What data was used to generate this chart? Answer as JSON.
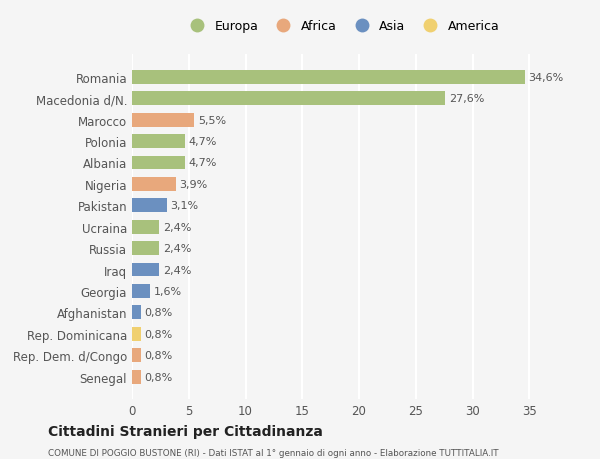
{
  "countries": [
    "Romania",
    "Macedonia d/N.",
    "Marocco",
    "Polonia",
    "Albania",
    "Nigeria",
    "Pakistan",
    "Ucraina",
    "Russia",
    "Iraq",
    "Georgia",
    "Afghanistan",
    "Rep. Dominicana",
    "Rep. Dem. d/Congo",
    "Senegal"
  ],
  "values": [
    34.6,
    27.6,
    5.5,
    4.7,
    4.7,
    3.9,
    3.1,
    2.4,
    2.4,
    2.4,
    1.6,
    0.8,
    0.8,
    0.8,
    0.8
  ],
  "labels": [
    "34,6%",
    "27,6%",
    "5,5%",
    "4,7%",
    "4,7%",
    "3,9%",
    "3,1%",
    "2,4%",
    "2,4%",
    "2,4%",
    "1,6%",
    "0,8%",
    "0,8%",
    "0,8%",
    "0,8%"
  ],
  "continents": [
    "Europa",
    "Europa",
    "Africa",
    "Europa",
    "Europa",
    "Africa",
    "Asia",
    "Europa",
    "Europa",
    "Asia",
    "Asia",
    "Asia",
    "America",
    "Africa",
    "Africa"
  ],
  "continent_colors": {
    "Europa": "#a8c17c",
    "Africa": "#e8a87c",
    "Asia": "#6b90c0",
    "America": "#f0d070"
  },
  "legend_order": [
    "Europa",
    "Africa",
    "Asia",
    "America"
  ],
  "title": "Cittadini Stranieri per Cittadinanza",
  "subtitle": "COMUNE DI POGGIO BUSTONE (RI) - Dati ISTAT al 1° gennaio di ogni anno - Elaborazione TUTTITALIA.IT",
  "xlim": [
    0,
    37
  ],
  "xticks": [
    0,
    5,
    10,
    15,
    20,
    25,
    30,
    35
  ],
  "background_color": "#f5f5f5",
  "grid_color": "#ffffff",
  "bar_height": 0.65
}
